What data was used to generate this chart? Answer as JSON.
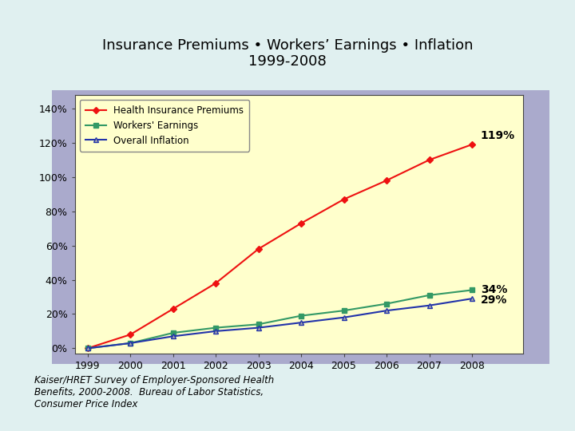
{
  "title_line1": "Insurance Premiums • Workers’ Earnings • Inflation",
  "title_line2": "1999-2008",
  "years": [
    1999,
    2000,
    2001,
    2002,
    2003,
    2004,
    2005,
    2006,
    2007,
    2008
  ],
  "health_premiums": [
    0,
    8,
    23,
    38,
    58,
    73,
    87,
    98,
    110,
    119
  ],
  "workers_earnings": [
    0,
    3,
    9,
    12,
    14,
    19,
    22,
    26,
    31,
    34
  ],
  "overall_inflation": [
    0,
    3,
    7,
    10,
    12,
    15,
    18,
    22,
    25,
    29
  ],
  "premium_color": "#EE1111",
  "earnings_color": "#339966",
  "inflation_color": "#2233AA",
  "inflation_marker_color": "#AAAAAA",
  "plot_bg_color": "#FFFFCC",
  "outer_bg_color": "#AAAACC",
  "figure_bg_color": "#E0F0F0",
  "legend_bg_color": "#FFFFCC",
  "annotation_119": "119%",
  "annotation_34": "34%",
  "annotation_29": "29%",
  "ylabel_ticks": [
    "0%",
    "20%",
    "40%",
    "60%",
    "80%",
    "100%",
    "120%",
    "140%"
  ],
  "ytick_values": [
    0,
    20,
    40,
    60,
    80,
    100,
    120,
    140
  ],
  "footnote": "Kaiser/HRET Survey of Employer-Sponsored Health\nBenefits, 2000-2008.  Bureau of Labor Statistics,\nConsumer Price Index",
  "legend_labels": [
    "Health Insurance Premiums",
    "Workers' Earnings",
    "Overall Inflation"
  ]
}
